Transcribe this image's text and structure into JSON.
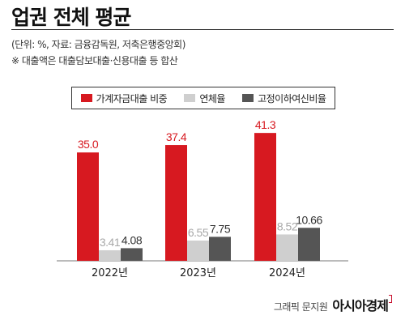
{
  "header": {
    "title": "업권 전체 평균",
    "unit_line": "(단위: %, 자료: 금융감독원, 저축은행중앙회)",
    "note_line": "※ 대출액은 대출담보대출·신용대출 등 합산"
  },
  "legend": {
    "items": [
      {
        "label": "가계자금대출 비중",
        "color": "#d71920"
      },
      {
        "label": "연체율",
        "color": "#cfcfcf"
      },
      {
        "label": "고정이하여신비율",
        "color": "#555555"
      }
    ]
  },
  "chart_data": {
    "type": "bar",
    "categories": [
      "2022년",
      "2023년",
      "2024년"
    ],
    "series": [
      {
        "name": "가계자금대출 비중",
        "values": [
          35.0,
          37.4,
          41.3
        ],
        "labels": [
          "35.0",
          "37.4",
          "41.3"
        ],
        "color": "#d71920",
        "label_color": "#d71920"
      },
      {
        "name": "연체율",
        "values": [
          3.41,
          6.55,
          8.52
        ],
        "labels": [
          "3.41",
          "6.55",
          "8.52"
        ],
        "color": "#cfcfcf",
        "label_color": "#a8a8a8"
      },
      {
        "name": "고정이하여신비율",
        "values": [
          4.08,
          7.75,
          10.66
        ],
        "labels": [
          "4.08",
          "7.75",
          "10.66"
        ],
        "color": "#555555",
        "label_color": "#333333"
      }
    ],
    "title": "업권 전체 평균",
    "xlabel": "",
    "ylabel": "",
    "ylim": [
      0,
      45
    ],
    "grid": false,
    "legend_position": "top"
  },
  "credit": {
    "label": "그래픽 문지원",
    "brand": "아시아경제"
  }
}
